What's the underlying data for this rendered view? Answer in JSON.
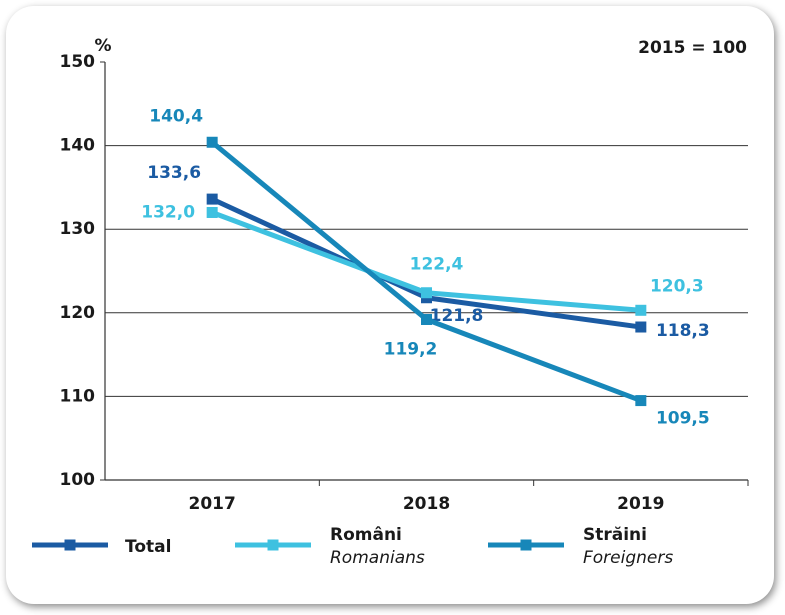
{
  "chart_data": {
    "type": "line",
    "y_label": "%",
    "annotation": "2015 = 100",
    "categories": [
      "2017",
      "2018",
      "2019"
    ],
    "ylim": [
      100,
      150
    ],
    "yticks": [
      100,
      110,
      120,
      130,
      140,
      150
    ],
    "grid": true,
    "series": [
      {
        "name": "Total",
        "color": "#1b5ba3",
        "values": [
          133.6,
          121.8,
          118.3
        ],
        "value_labels": [
          "133,6",
          "121,8",
          "118,3"
        ]
      },
      {
        "name": "Români",
        "name_en": "Romanians",
        "color": "#3ec1e0",
        "values": [
          132.0,
          122.4,
          120.3
        ],
        "value_labels": [
          "132,0",
          "122,4",
          "120,3"
        ]
      },
      {
        "name": "Străini",
        "name_en": "Foreigners",
        "color": "#1787b9",
        "values": [
          140.4,
          119.2,
          109.5
        ],
        "value_labels": [
          "140,4",
          "119,2",
          "109,5"
        ]
      }
    ]
  }
}
